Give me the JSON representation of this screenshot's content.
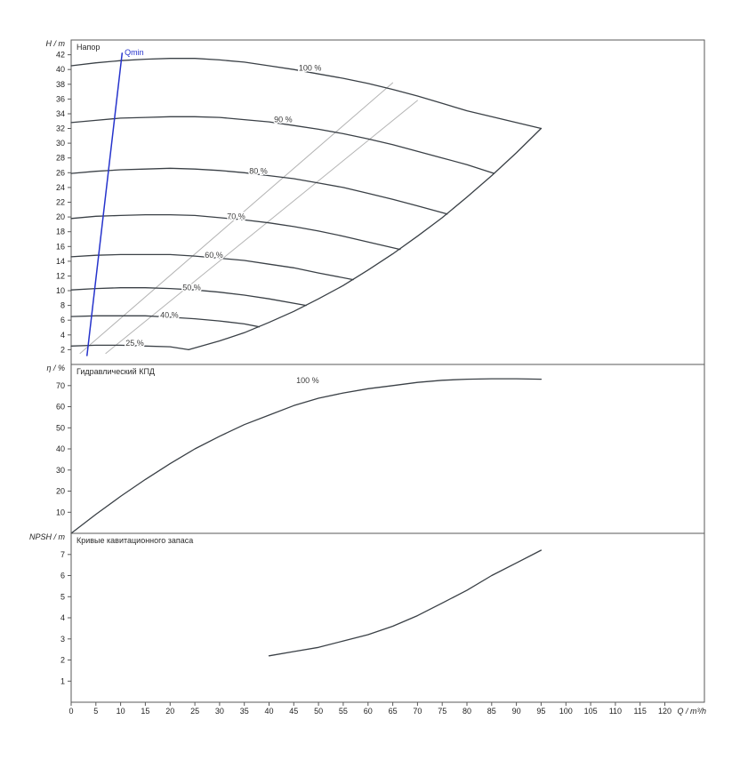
{
  "chart_data": {
    "type": "line",
    "style": {
      "frame_color": "#5a5a5a",
      "curve_color": "#3a4046",
      "guide_color": "#b4b4b4",
      "qmin_color": "#2633cc",
      "label_color": "#3c3c3c"
    },
    "x_axis": {
      "label": "Q / m³/h",
      "min": 0,
      "max": 120,
      "render_max": 128,
      "ticks": [
        0,
        5,
        10,
        15,
        20,
        25,
        30,
        35,
        40,
        45,
        50,
        55,
        60,
        65,
        70,
        75,
        80,
        85,
        90,
        95,
        100,
        105,
        110,
        115,
        120
      ]
    },
    "panels": [
      {
        "id": "head",
        "title": "Напор",
        "y_axis": {
          "label": "H / m",
          "min": 0,
          "max": 44,
          "render_max": 44,
          "ticks": [
            2,
            4,
            6,
            8,
            10,
            12,
            14,
            16,
            18,
            20,
            22,
            24,
            26,
            28,
            30,
            32,
            34,
            36,
            38,
            40,
            42
          ]
        },
        "series": [
          {
            "id": "guide-line-1",
            "color": "#b4b4b4",
            "width": 1,
            "points": [
              [
                1.8,
                1.5
              ],
              [
                65,
                38.2
              ]
            ]
          },
          {
            "id": "guide-line-2",
            "color": "#b4b4b4",
            "width": 1,
            "points": [
              [
                7,
                1.5
              ],
              [
                70,
                35.8
              ]
            ]
          },
          {
            "id": "speed-100",
            "label": {
              "text": "100 %",
              "q": 46,
              "v": 40.2
            },
            "points": [
              [
                0,
                40.5
              ],
              [
                5,
                40.9
              ],
              [
                10,
                41.2
              ],
              [
                15,
                41.4
              ],
              [
                20,
                41.5
              ],
              [
                25,
                41.5
              ],
              [
                30,
                41.3
              ],
              [
                35,
                41.0
              ],
              [
                40,
                40.5
              ],
              [
                45,
                40.0
              ],
              [
                50,
                39.4
              ],
              [
                55,
                38.8
              ],
              [
                60,
                38.1
              ],
              [
                65,
                37.3
              ],
              [
                70,
                36.4
              ],
              [
                75,
                35.4
              ],
              [
                80,
                34.4
              ],
              [
                85,
                33.6
              ],
              [
                90,
                32.8
              ],
              [
                95,
                32.0
              ]
            ]
          },
          {
            "id": "speed-90",
            "label": {
              "text": "90 %",
              "q": 41,
              "v": 33.2
            },
            "points": [
              [
                0,
                32.8
              ],
              [
                5,
                33.1
              ],
              [
                10,
                33.4
              ],
              [
                15,
                33.5
              ],
              [
                20,
                33.6
              ],
              [
                25,
                33.6
              ],
              [
                30,
                33.5
              ],
              [
                35,
                33.2
              ],
              [
                40,
                32.9
              ],
              [
                45,
                32.4
              ],
              [
                50,
                31.9
              ],
              [
                55,
                31.3
              ],
              [
                60,
                30.6
              ],
              [
                65,
                29.8
              ],
              [
                70,
                28.9
              ],
              [
                75,
                28.0
              ],
              [
                80,
                27.1
              ],
              [
                85.5,
                25.9
              ]
            ]
          },
          {
            "id": "speed-80",
            "label": {
              "text": "80 %",
              "q": 36,
              "v": 26.2
            },
            "points": [
              [
                0,
                25.9
              ],
              [
                5,
                26.2
              ],
              [
                10,
                26.4
              ],
              [
                15,
                26.5
              ],
              [
                20,
                26.6
              ],
              [
                25,
                26.5
              ],
              [
                30,
                26.3
              ],
              [
                35,
                26.0
              ],
              [
                40,
                25.6
              ],
              [
                45,
                25.2
              ],
              [
                50,
                24.6
              ],
              [
                55,
                24.0
              ],
              [
                60,
                23.2
              ],
              [
                65,
                22.4
              ],
              [
                70,
                21.5
              ],
              [
                76,
                20.4
              ]
            ]
          },
          {
            "id": "speed-70",
            "label": {
              "text": "70 %",
              "q": 31.5,
              "v": 20.1
            },
            "points": [
              [
                0,
                19.8
              ],
              [
                5,
                20.1
              ],
              [
                10,
                20.2
              ],
              [
                15,
                20.3
              ],
              [
                20,
                20.3
              ],
              [
                25,
                20.2
              ],
              [
                30,
                19.9
              ],
              [
                35,
                19.6
              ],
              [
                40,
                19.2
              ],
              [
                45,
                18.7
              ],
              [
                50,
                18.1
              ],
              [
                55,
                17.4
              ],
              [
                60,
                16.6
              ],
              [
                66.5,
                15.6
              ]
            ]
          },
          {
            "id": "speed-60",
            "label": {
              "text": "60 %",
              "q": 27,
              "v": 14.8
            },
            "points": [
              [
                0,
                14.6
              ],
              [
                5,
                14.8
              ],
              [
                10,
                14.9
              ],
              [
                15,
                14.9
              ],
              [
                20,
                14.9
              ],
              [
                25,
                14.7
              ],
              [
                30,
                14.4
              ],
              [
                35,
                14.1
              ],
              [
                40,
                13.6
              ],
              [
                45,
                13.1
              ],
              [
                50,
                12.4
              ],
              [
                57,
                11.5
              ]
            ]
          },
          {
            "id": "speed-50",
            "label": {
              "text": "50 %",
              "q": 22.5,
              "v": 10.4
            },
            "points": [
              [
                0,
                10.1
              ],
              [
                5,
                10.3
              ],
              [
                10,
                10.4
              ],
              [
                15,
                10.4
              ],
              [
                20,
                10.3
              ],
              [
                25,
                10.1
              ],
              [
                30,
                9.8
              ],
              [
                35,
                9.4
              ],
              [
                40,
                8.9
              ],
              [
                47.5,
                8.0
              ]
            ]
          },
          {
            "id": "speed-40",
            "label": {
              "text": "40 %",
              "q": 18,
              "v": 6.7
            },
            "points": [
              [
                0,
                6.5
              ],
              [
                5,
                6.6
              ],
              [
                10,
                6.6
              ],
              [
                15,
                6.6
              ],
              [
                20,
                6.4
              ],
              [
                25,
                6.2
              ],
              [
                30,
                5.9
              ],
              [
                35,
                5.5
              ],
              [
                38,
                5.1
              ]
            ]
          },
          {
            "id": "speed-25",
            "label": {
              "text": "25 %",
              "q": 11,
              "v": 2.9
            },
            "points": [
              [
                0,
                2.5
              ],
              [
                5,
                2.6
              ],
              [
                10,
                2.6
              ],
              [
                15,
                2.5
              ],
              [
                20,
                2.4
              ],
              [
                23.75,
                2.0
              ]
            ]
          },
          {
            "id": "max-flow-limit",
            "points": [
              [
                23.75,
                2.0
              ],
              [
                30,
                3.2
              ],
              [
                35,
                4.3
              ],
              [
                40,
                5.7
              ],
              [
                45,
                7.2
              ],
              [
                50,
                8.9
              ],
              [
                55,
                10.7
              ],
              [
                60,
                12.8
              ],
              [
                65,
                15.0
              ],
              [
                70,
                17.4
              ],
              [
                75,
                19.9
              ],
              [
                80,
                22.7
              ],
              [
                85,
                25.6
              ],
              [
                90,
                28.7
              ],
              [
                95,
                32.0
              ]
            ]
          },
          {
            "id": "qmin-line",
            "color": "#2633cc",
            "width": 1.5,
            "label": {
              "text": "Qmin",
              "q": 10.8,
              "v": 42.3
            },
            "label_color": "#2633cc",
            "points": [
              [
                3.2,
                1.2
              ],
              [
                10.3,
                42.2
              ]
            ]
          }
        ]
      },
      {
        "id": "efficiency",
        "title": "Гидравлический КПД",
        "y_axis": {
          "label": "η / %",
          "min": 0,
          "max": 80,
          "render_max": 80,
          "ticks": [
            10,
            20,
            30,
            40,
            50,
            60,
            70
          ]
        },
        "series": [
          {
            "id": "efficiency-100",
            "label": {
              "text": "100 %",
              "q": 45.5,
              "v": 72.5
            },
            "points": [
              [
                0,
                0
              ],
              [
                5,
                9
              ],
              [
                10,
                17.5
              ],
              [
                15,
                25.5
              ],
              [
                20,
                33
              ],
              [
                25,
                40
              ],
              [
                30,
                46
              ],
              [
                35,
                51.5
              ],
              [
                40,
                56
              ],
              [
                45,
                60.5
              ],
              [
                50,
                64
              ],
              [
                55,
                66.5
              ],
              [
                60,
                68.5
              ],
              [
                65,
                70
              ],
              [
                70,
                71.5
              ],
              [
                75,
                72.5
              ],
              [
                80,
                73
              ],
              [
                85,
                73.2
              ],
              [
                90,
                73.2
              ],
              [
                95,
                73
              ]
            ]
          }
        ]
      },
      {
        "id": "npsh",
        "title": "Кривые кавитационного запаса",
        "y_axis": {
          "label": "NPSH / m",
          "min": 0,
          "max": 8,
          "render_max": 8,
          "ticks": [
            1,
            2,
            3,
            4,
            5,
            6,
            7
          ]
        },
        "series": [
          {
            "id": "npsh-curve",
            "points": [
              [
                40,
                2.2
              ],
              [
                45,
                2.4
              ],
              [
                50,
                2.6
              ],
              [
                55,
                2.9
              ],
              [
                60,
                3.2
              ],
              [
                65,
                3.6
              ],
              [
                70,
                4.1
              ],
              [
                75,
                4.7
              ],
              [
                80,
                5.3
              ],
              [
                85,
                6.0
              ],
              [
                90,
                6.6
              ],
              [
                95,
                7.2
              ]
            ]
          }
        ]
      }
    ]
  }
}
